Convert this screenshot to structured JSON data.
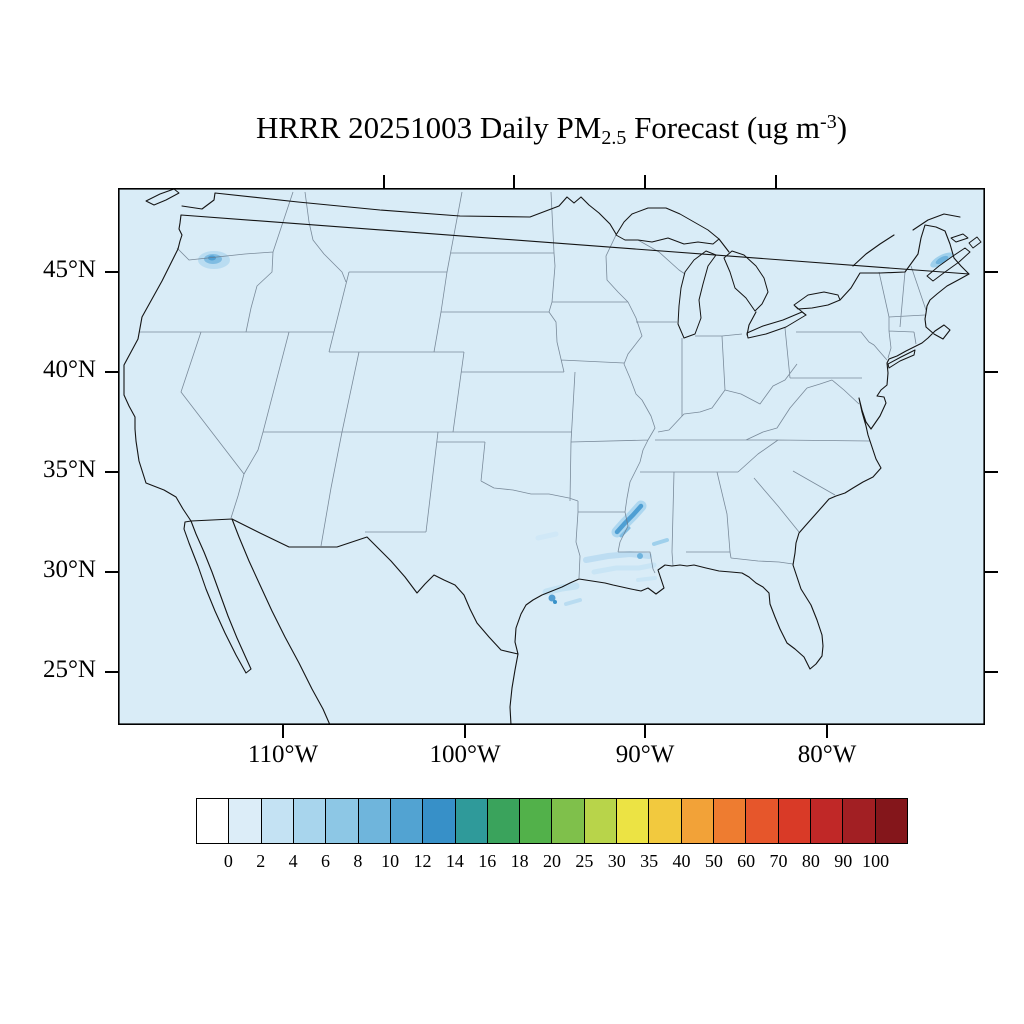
{
  "title": {
    "part1": "HRRR 20251003 Daily PM",
    "sub": "2.5",
    "part2": " Forecast (ug m",
    "sup": "-3",
    "part3": ")"
  },
  "map": {
    "background_color": "#d9ecf7",
    "coast_color": "#141414",
    "state_border_color": "#68798a"
  },
  "axes": {
    "y_ticks": [
      {
        "label": "45°N",
        "pos": 84
      },
      {
        "label": "40°N",
        "pos": 184
      },
      {
        "label": "35°N",
        "pos": 284
      },
      {
        "label": "30°N",
        "pos": 384
      },
      {
        "label": "25°N",
        "pos": 484
      }
    ],
    "x_ticks": [
      {
        "label": "110°W",
        "pos": 165
      },
      {
        "label": "100°W",
        "pos": 347
      },
      {
        "label": "90°W",
        "pos": 527
      },
      {
        "label": "80°W",
        "pos": 709
      }
    ],
    "top_tick_pos": [
      266,
      396,
      527,
      658
    ]
  },
  "colorbar": {
    "levels": [
      "0",
      "2",
      "4",
      "6",
      "8",
      "10",
      "12",
      "14",
      "16",
      "18",
      "20",
      "25",
      "30",
      "35",
      "40",
      "50",
      "60",
      "70",
      "80",
      "90",
      "100"
    ],
    "colors": [
      "#ffffff",
      "#dcedf8",
      "#c4e2f3",
      "#a8d5ed",
      "#8dc7e5",
      "#6fb5dc",
      "#52a3d2",
      "#3790c8",
      "#2f9a9a",
      "#3aa35c",
      "#52b14a",
      "#7fc04b",
      "#b8d44a",
      "#ece344",
      "#f2c93e",
      "#f2a238",
      "#ee7c30",
      "#e6562b",
      "#d93a27",
      "#c02827",
      "#a21f23",
      "#84161b"
    ]
  },
  "chart_data": {
    "type": "heatmap",
    "title": "HRRR 20251003 Daily PM2.5 Forecast (ug m-3)",
    "model": "HRRR",
    "forecast_date": "20251003",
    "variable": "Daily PM2.5",
    "units": "ug m-3",
    "region": "Continental United States",
    "x_axis": {
      "label": "longitude",
      "tick_labels": [
        "110°W",
        "100°W",
        "90°W",
        "80°W"
      ]
    },
    "y_axis": {
      "label": "latitude",
      "tick_labels": [
        "25°N",
        "30°N",
        "35°N",
        "40°N",
        "45°N"
      ]
    },
    "color_scale": {
      "boundary_levels_ug_m3": [
        0,
        2,
        4,
        6,
        8,
        10,
        12,
        14,
        16,
        18,
        20,
        25,
        30,
        35,
        40,
        50,
        60,
        70,
        80,
        90,
        100
      ],
      "colors": [
        "#ffffff",
        "#dcedf8",
        "#c4e2f3",
        "#a8d5ed",
        "#8dc7e5",
        "#6fb5dc",
        "#52a3d2",
        "#3790c8",
        "#2f9a9a",
        "#3aa35c",
        "#52b14a",
        "#7fc04b",
        "#b8d44a",
        "#ece344",
        "#f2c93e",
        "#f2a238",
        "#ee7c30",
        "#e6562b",
        "#d93a27",
        "#c02827",
        "#a21f23",
        "#84161b"
      ]
    },
    "field_summary": [
      {
        "region": "most of CONUS and offshore waters",
        "pm25_ug_m3": "0-2"
      },
      {
        "region": "central Washington (Cascades)",
        "pm25_ug_m3": "2-8"
      },
      {
        "region": "lower Mississippi valley (Arkansas/Mississippi border)",
        "pm25_ug_m3": "4-10"
      },
      {
        "region": "Louisiana and east Texas gulf coast",
        "pm25_ug_m3": "2-6"
      },
      {
        "region": "Nova Scotia / far northeast map edge",
        "pm25_ug_m3": "2-6"
      }
    ]
  }
}
